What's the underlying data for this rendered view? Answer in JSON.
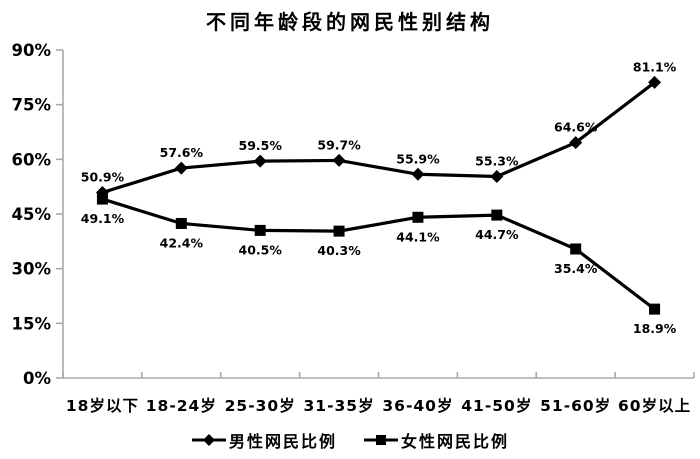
{
  "title": "不同年龄段的网民性别结构",
  "chart_data": {
    "type": "line",
    "title": "不同年龄段的网民性别结构",
    "categories": [
      "18岁以下",
      "18-24岁",
      "25-30岁",
      "31-35岁",
      "36-40岁",
      "41-50岁",
      "51-60岁",
      "60岁以上"
    ],
    "series": [
      {
        "name": "男性网民比例",
        "marker": "diamond",
        "values": [
          50.9,
          57.6,
          59.5,
          59.7,
          55.9,
          55.3,
          64.6,
          81.1
        ],
        "labels": [
          "50.9%",
          "57.6%",
          "59.5%",
          "59.7%",
          "55.9%",
          "55.3%",
          "64.6%",
          "81.1%"
        ],
        "label_position": "above"
      },
      {
        "name": "女性网民比例",
        "marker": "square",
        "values": [
          49.1,
          42.4,
          40.5,
          40.3,
          44.1,
          44.7,
          35.4,
          18.9
        ],
        "labels": [
          "49.1%",
          "42.4%",
          "40.5%",
          "40.3%",
          "44.1%",
          "44.7%",
          "35.4%",
          "18.9%"
        ],
        "label_position": "below"
      }
    ],
    "xlabel": "",
    "ylabel": "",
    "ylim": [
      0,
      90
    ],
    "ytick_step": 15,
    "ytick_labels": [
      "0%",
      "15%",
      "30%",
      "45%",
      "60%",
      "75%",
      "90%"
    ],
    "grid": false,
    "legend_position": "bottom",
    "colors": {
      "line": "#000000",
      "marker": "#000000",
      "text": "#000000",
      "axis": "#a8a8a8",
      "background": "#ffffff"
    }
  },
  "legend": {
    "items": [
      {
        "label": "男性网民比例",
        "marker": "diamond"
      },
      {
        "label": "女性网民比例",
        "marker": "square"
      }
    ]
  }
}
